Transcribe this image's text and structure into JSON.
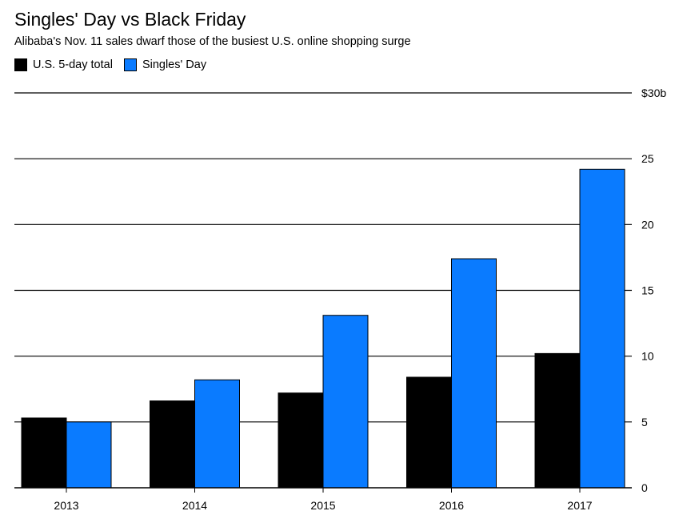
{
  "chart_data": {
    "type": "bar",
    "title": "Singles' Day vs Black Friday",
    "subtitle": "Alibaba's Nov. 11 sales dwarf those of the busiest U.S. online shopping surge",
    "categories": [
      "2013",
      "2014",
      "2015",
      "2016",
      "2017"
    ],
    "series": [
      {
        "name": "U.S. 5-day total",
        "color": "#000000",
        "values": [
          5.3,
          6.6,
          7.2,
          8.4,
          10.2
        ]
      },
      {
        "name": "Singles' Day",
        "color": "#0A7BFF",
        "values": [
          5.0,
          8.2,
          13.1,
          17.4,
          24.2
        ]
      }
    ],
    "ylim": [
      0,
      30
    ],
    "yticks": [
      0,
      5,
      10,
      15,
      20,
      25,
      30
    ],
    "ytick_labels": [
      "0",
      "5",
      "10",
      "15",
      "20",
      "25",
      "$30b"
    ],
    "xlabel": "",
    "ylabel": "",
    "grid": true,
    "legend_position": "top-left"
  }
}
